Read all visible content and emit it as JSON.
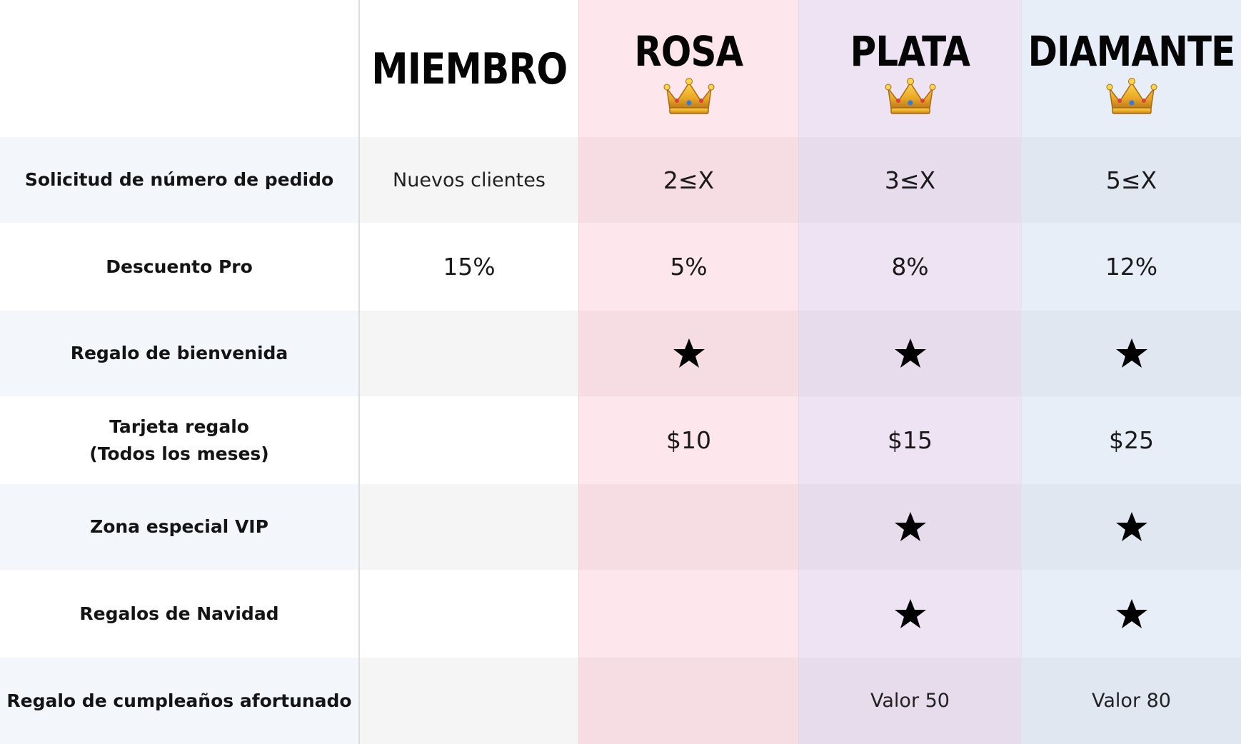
{
  "header": {
    "tiers": [
      {
        "name": "MIEMBRO",
        "crown": false
      },
      {
        "name": "ROSA",
        "crown": true,
        "crown_icon": "crown-icon"
      },
      {
        "name": "PLATA",
        "crown": true,
        "crown_icon": "crown-icon"
      },
      {
        "name": "DIAMANTE",
        "crown": true,
        "crown_icon": "crown-icon"
      }
    ]
  },
  "rows": [
    {
      "label": "Solicitud de número de pedido",
      "values": [
        "Nuevos clientes",
        "2≤X",
        "3≤X",
        "5≤X"
      ]
    },
    {
      "label": "Descuento Pro",
      "values": [
        "15%",
        "5%",
        "8%",
        "12%"
      ]
    },
    {
      "label": "Regalo de bienvenida",
      "values": [
        "",
        "star-icon",
        "star-icon",
        "star-icon"
      ]
    },
    {
      "label": "Tarjeta regalo\n(Todos los meses)",
      "values": [
        "",
        "$10",
        "$15",
        "$25"
      ]
    },
    {
      "label": "Zona especial VIP",
      "values": [
        "",
        "",
        "star-icon",
        "star-icon"
      ]
    },
    {
      "label": "Regalos de Navidad",
      "values": [
        "",
        "",
        "star-icon",
        "star-icon"
      ]
    },
    {
      "label": "Regalo de cumpleaños afortunado",
      "values": [
        "",
        "",
        "Valor 50",
        "Valor 80"
      ]
    }
  ],
  "colors": {
    "rosa": "#fde6ec",
    "plata": "#ede3f2",
    "diamante": "#e8eef8",
    "crown_gold": "#e9a825"
  }
}
